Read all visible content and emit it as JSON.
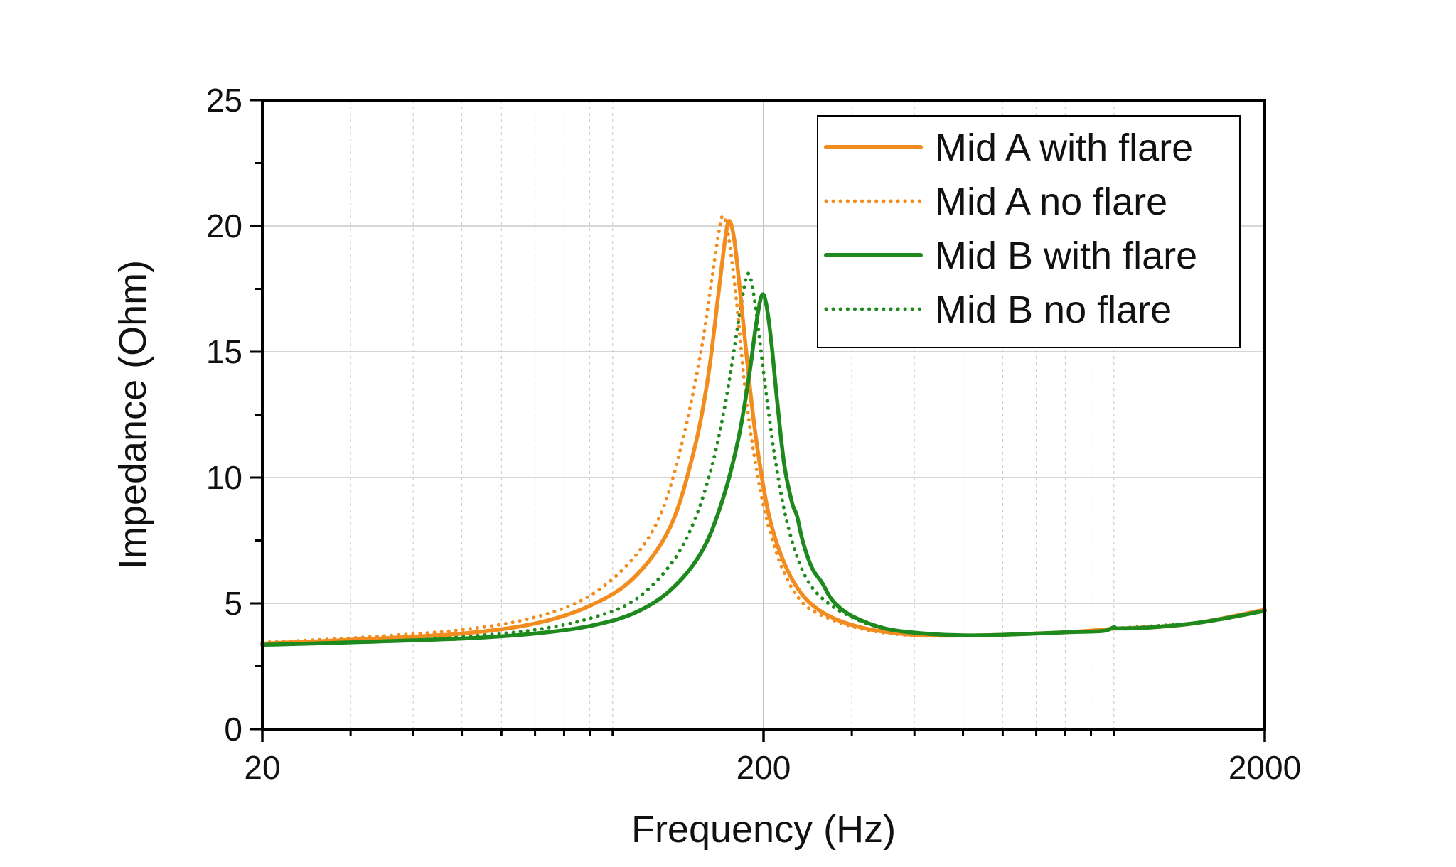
{
  "chart_data": {
    "type": "line",
    "xlabel": "Frequency (Hz)",
    "ylabel": "Impedance (Ohm)",
    "xscale": "log",
    "xlim": [
      20,
      2000
    ],
    "ylim": [
      0,
      25
    ],
    "x_ticks": [
      20,
      200,
      2000
    ],
    "y_ticks": [
      0,
      5,
      10,
      15,
      20,
      25
    ],
    "grid": true,
    "legend_position": "top-right",
    "series": [
      {
        "name": "Mid A with flare",
        "color": "#F28C1F",
        "style": "solid",
        "points": [
          [
            20,
            3.4
          ],
          [
            30,
            3.55
          ],
          [
            50,
            3.8
          ],
          [
            70,
            4.2
          ],
          [
            90,
            4.9
          ],
          [
            110,
            6.0
          ],
          [
            130,
            8.0
          ],
          [
            145,
            11.0
          ],
          [
            155,
            14.0
          ],
          [
            163,
            17.5
          ],
          [
            168,
            19.6
          ],
          [
            171,
            20.2
          ],
          [
            175,
            19.4
          ],
          [
            180,
            17.2
          ],
          [
            188,
            13.5
          ],
          [
            195,
            11.0
          ],
          [
            205,
            8.5
          ],
          [
            220,
            6.6
          ],
          [
            240,
            5.3
          ],
          [
            270,
            4.5
          ],
          [
            320,
            4.0
          ],
          [
            400,
            3.75
          ],
          [
            500,
            3.72
          ],
          [
            600,
            3.75
          ],
          [
            800,
            3.85
          ],
          [
            950,
            3.95
          ],
          [
            1000,
            4.0
          ],
          [
            1200,
            4.05
          ],
          [
            1500,
            4.25
          ],
          [
            2000,
            4.75
          ]
        ]
      },
      {
        "name": "Mid A no flare",
        "color": "#F28C1F",
        "style": "dotted",
        "points": [
          [
            20,
            3.45
          ],
          [
            30,
            3.62
          ],
          [
            50,
            3.95
          ],
          [
            70,
            4.45
          ],
          [
            90,
            5.3
          ],
          [
            110,
            6.8
          ],
          [
            125,
            8.6
          ],
          [
            138,
            11.5
          ],
          [
            150,
            15.0
          ],
          [
            158,
            18.0
          ],
          [
            163,
            19.8
          ],
          [
            166,
            20.4
          ],
          [
            170,
            19.7
          ],
          [
            176,
            17.3
          ],
          [
            185,
            13.0
          ],
          [
            195,
            10.0
          ],
          [
            205,
            8.0
          ],
          [
            220,
            6.2
          ],
          [
            240,
            5.0
          ],
          [
            270,
            4.4
          ],
          [
            320,
            3.95
          ],
          [
            400,
            3.72
          ],
          [
            500,
            3.72
          ],
          [
            600,
            3.75
          ],
          [
            800,
            3.85
          ],
          [
            1000,
            3.98
          ],
          [
            1500,
            4.25
          ],
          [
            2000,
            4.7
          ]
        ]
      },
      {
        "name": "Mid B with flare",
        "color": "#1E8A1E",
        "style": "solid",
        "points": [
          [
            20,
            3.35
          ],
          [
            30,
            3.45
          ],
          [
            50,
            3.6
          ],
          [
            70,
            3.8
          ],
          [
            90,
            4.1
          ],
          [
            110,
            4.6
          ],
          [
            130,
            5.5
          ],
          [
            150,
            7.0
          ],
          [
            165,
            9.0
          ],
          [
            178,
            11.5
          ],
          [
            187,
            14.0
          ],
          [
            193,
            16.0
          ],
          [
            198,
            17.2
          ],
          [
            202,
            17.0
          ],
          [
            207,
            15.5
          ],
          [
            213,
            13.0
          ],
          [
            220,
            10.5
          ],
          [
            228,
            9.0
          ],
          [
            233,
            8.5
          ],
          [
            240,
            7.4
          ],
          [
            250,
            6.4
          ],
          [
            262,
            5.8
          ],
          [
            275,
            5.1
          ],
          [
            300,
            4.5
          ],
          [
            350,
            4.0
          ],
          [
            420,
            3.8
          ],
          [
            500,
            3.73
          ],
          [
            600,
            3.75
          ],
          [
            800,
            3.85
          ],
          [
            950,
            3.9
          ],
          [
            1000,
            4.05
          ],
          [
            1020,
            4.0
          ],
          [
            1200,
            4.05
          ],
          [
            1500,
            4.25
          ],
          [
            2000,
            4.7
          ]
        ]
      },
      {
        "name": "Mid B no flare",
        "color": "#1E8A1E",
        "style": "dotted",
        "points": [
          [
            20,
            3.4
          ],
          [
            30,
            3.5
          ],
          [
            50,
            3.68
          ],
          [
            70,
            3.95
          ],
          [
            90,
            4.4
          ],
          [
            110,
            5.1
          ],
          [
            130,
            6.5
          ],
          [
            145,
            8.2
          ],
          [
            158,
            10.5
          ],
          [
            168,
            13.0
          ],
          [
            176,
            15.5
          ],
          [
            182,
            17.3
          ],
          [
            186,
            18.1
          ],
          [
            190,
            17.6
          ],
          [
            195,
            16.0
          ],
          [
            202,
            13.5
          ],
          [
            210,
            11.0
          ],
          [
            220,
            8.7
          ],
          [
            232,
            7.0
          ],
          [
            245,
            5.9
          ],
          [
            262,
            5.2
          ],
          [
            290,
            4.6
          ],
          [
            340,
            4.05
          ],
          [
            420,
            3.78
          ],
          [
            500,
            3.72
          ],
          [
            600,
            3.75
          ],
          [
            800,
            3.85
          ],
          [
            1000,
            4.0
          ],
          [
            1500,
            4.25
          ],
          [
            2000,
            4.7
          ]
        ]
      }
    ]
  }
}
